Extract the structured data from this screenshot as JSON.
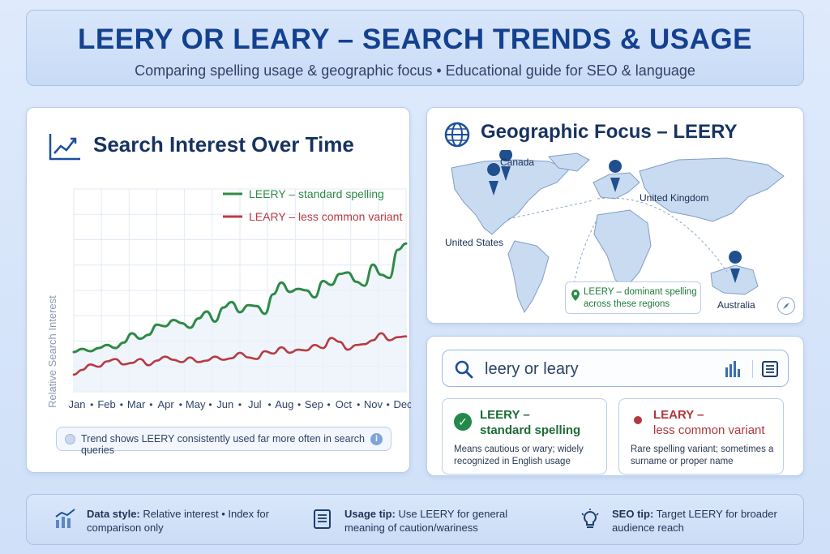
{
  "header": {
    "title": "LEERY OR LEARY – SEARCH TRENDS & USAGE",
    "subtitle": "Comparing spelling usage & geographic focus • Educational guide for SEO & language"
  },
  "trend_panel": {
    "title": "Search Interest Over Time",
    "note": "Trend shows LEERY consistently used far more often in search queries"
  },
  "chart_data": {
    "type": "line",
    "title": "Search Interest Over Time",
    "xlabel": "",
    "ylabel": "Relative Search Interest",
    "categories": [
      "Jan",
      "Feb",
      "Mar",
      "Apr",
      "May",
      "Jun",
      "Jul",
      "Aug",
      "Sep",
      "Oct",
      "Nov",
      "Dec"
    ],
    "x": [
      0,
      0.3,
      0.6,
      0.9,
      1.2,
      1.5,
      1.8,
      2.1,
      2.4,
      2.7,
      3.0,
      3.3,
      3.6,
      3.9,
      4.2,
      4.5,
      4.8,
      5.1,
      5.4,
      5.7,
      6.0,
      6.3,
      6.6,
      6.9,
      7.2,
      7.5,
      7.8,
      8.1,
      8.4,
      8.7,
      9.0,
      9.3,
      9.6,
      9.9,
      10.2,
      10.5,
      10.8,
      11.1,
      11.4,
      11.7,
      12.0
    ],
    "series": [
      {
        "name": "LEERY – standard spelling",
        "color": "#2e8a47",
        "values": [
          21,
          25,
          22,
          26,
          30,
          26,
          33,
          45,
          38,
          43,
          56,
          54,
          62,
          58,
          52,
          64,
          73,
          60,
          78,
          85,
          72,
          81,
          80,
          70,
          95,
          110,
          98,
          102,
          100,
          91,
          112,
          107,
          121,
          123,
          111,
          106,
          133,
          120,
          116,
          152,
          160
        ]
      },
      {
        "name": "LEARY – less common variant",
        "color": "#b83b42",
        "values": [
          -8,
          -2,
          5,
          2,
          9,
          12,
          5,
          7,
          12,
          4,
          10,
          15,
          11,
          8,
          14,
          8,
          10,
          15,
          11,
          13,
          20,
          14,
          12,
          22,
          19,
          27,
          20,
          24,
          23,
          30,
          26,
          39,
          34,
          24,
          30,
          31,
          36,
          45,
          36,
          40,
          41
        ]
      }
    ],
    "ylim": [
      -30,
      230
    ],
    "grid": true,
    "legend": "top-right"
  },
  "geo_panel": {
    "title": "Geographic Focus – LEERY",
    "labels": {
      "canada": "Canada",
      "united_states": "United States",
      "united_kingdom": "United Kingdom",
      "australia": "Australia"
    },
    "legend": "LEERY – dominant spelling across these regions"
  },
  "search_panel": {
    "query": "leery or leary",
    "variants": [
      {
        "head": "LEERY –",
        "sub": "standard spelling",
        "desc": "Means cautious or wary; widely recognized in English usage"
      },
      {
        "head": "LEARY –",
        "sub": "less common variant",
        "desc": "Rare spelling variant; sometimes a surname or proper name"
      }
    ]
  },
  "footer": {
    "tip1_label": "Data style:",
    "tip1_text": "Relative interest • Index for comparison only",
    "tip2_label": "Usage tip:",
    "tip2_text": "Use LEERY for general meaning of caution/wariness",
    "tip3_label": "SEO tip:",
    "tip3_text": "Target LEERY for broader audience reach"
  },
  "colors": {
    "accent_blue": "#14418f",
    "leery_green": "#2e8a47",
    "leary_red": "#b83b42"
  }
}
